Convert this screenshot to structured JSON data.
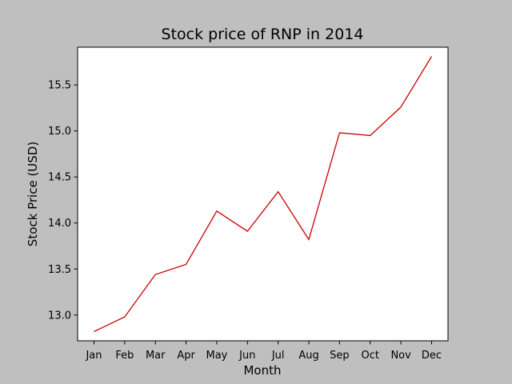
{
  "chart_data": {
    "type": "line",
    "title": "Stock price of RNP in 2014",
    "xlabel": "Month",
    "ylabel": "Stock Price (USD)",
    "categories": [
      "Jan",
      "Feb",
      "Mar",
      "Apr",
      "May",
      "Jun",
      "Jul",
      "Aug",
      "Sep",
      "Oct",
      "Nov",
      "Dec"
    ],
    "series": [
      {
        "values": [
          12.82,
          12.98,
          13.44,
          13.55,
          14.13,
          13.91,
          14.34,
          13.82,
          14.98,
          14.95,
          15.26,
          15.81
        ],
        "color": "#cc0000"
      }
    ],
    "yticks": [
      13.0,
      13.5,
      14.0,
      14.5,
      15.0,
      15.5
    ],
    "ytick_labels": [
      "13.0",
      "13.5",
      "14.0",
      "14.5",
      "15.0",
      "15.5"
    ],
    "ylim": [
      12.72,
      15.91
    ],
    "grid": false,
    "background": "#bfbfbf",
    "plot_background": "#ffffff"
  }
}
